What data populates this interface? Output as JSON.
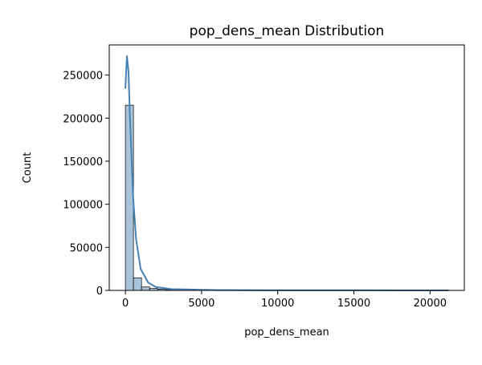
{
  "chart_data": {
    "type": "histogram",
    "title": "pop_dens_mean Distribution",
    "xlabel": "pop_dens_mean",
    "ylabel": "Count",
    "xlim": [
      -1060,
      22250
    ],
    "ylim": [
      0,
      285000
    ],
    "x_ticks": [
      0,
      5000,
      10000,
      15000,
      20000
    ],
    "x_tick_labels": [
      "0",
      "5000",
      "10000",
      "15000",
      "20000"
    ],
    "y_ticks": [
      0,
      50000,
      100000,
      150000,
      200000,
      250000
    ],
    "y_tick_labels": [
      "0",
      "50000",
      "100000",
      "150000",
      "200000",
      "250000"
    ],
    "bin_width": 530,
    "bins": [
      {
        "x0": 0,
        "x1": 530,
        "count": 215000
      },
      {
        "x0": 530,
        "x1": 1060,
        "count": 14500
      },
      {
        "x0": 1060,
        "x1": 1590,
        "count": 4000
      },
      {
        "x0": 1590,
        "x1": 2120,
        "count": 2300
      },
      {
        "x0": 2120,
        "x1": 2650,
        "count": 1500
      },
      {
        "x0": 2650,
        "x1": 3180,
        "count": 1000
      },
      {
        "x0": 3180,
        "x1": 3710,
        "count": 900
      },
      {
        "x0": 3710,
        "x1": 4240,
        "count": 700
      },
      {
        "x0": 4240,
        "x1": 4770,
        "count": 500
      },
      {
        "x0": 4770,
        "x1": 5300,
        "count": 300
      }
    ],
    "kde": {
      "x": [
        0,
        100,
        200,
        300,
        500,
        700,
        1000,
        1500,
        2000,
        3000,
        4000,
        5000,
        6000,
        8000,
        10000,
        12000,
        14000,
        16000,
        18000,
        20000,
        21200
      ],
      "y": [
        235000,
        272000,
        255000,
        200000,
        110000,
        60000,
        25000,
        9000,
        4000,
        1500,
        1200,
        700,
        400,
        250,
        150,
        150,
        100,
        80,
        50,
        50,
        50
      ]
    },
    "colors": {
      "bar_fill": "#a9c3da",
      "bar_edge": "#1a1a1a",
      "kde_line": "#4682b4"
    },
    "grid": false,
    "legend": "none"
  }
}
